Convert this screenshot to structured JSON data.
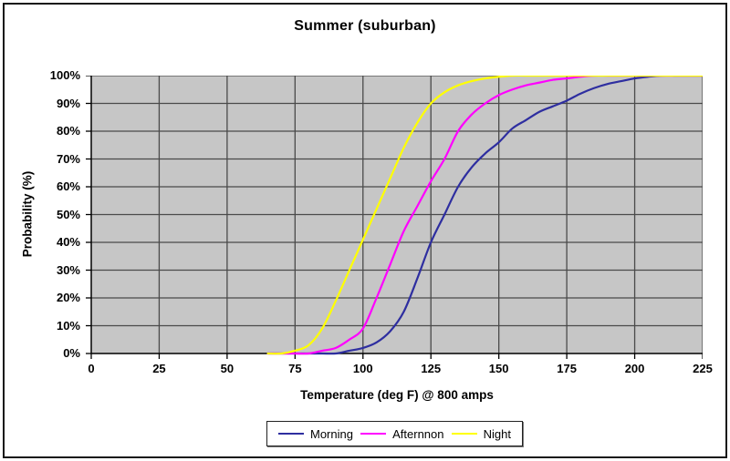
{
  "chart_data": {
    "type": "line",
    "title": "Summer (suburban)",
    "xlabel": "Temperature (deg F) @ 800 amps",
    "ylabel": "Probability (%)",
    "xlim": [
      0,
      225
    ],
    "ylim": [
      0,
      100
    ],
    "grid": true,
    "legend_position": "bottom",
    "plot_bg_color": "#c6c6c6",
    "grid_color": "#4a4a4a",
    "axis_color": "#000000",
    "x_ticks": [
      0,
      25,
      50,
      75,
      100,
      125,
      150,
      175,
      200,
      225
    ],
    "x_tick_labels": [
      "0",
      "25",
      "50",
      "75",
      "100",
      "125",
      "150",
      "175",
      "200",
      "225"
    ],
    "y_ticks": [
      0,
      10,
      20,
      30,
      40,
      50,
      60,
      70,
      80,
      90,
      100
    ],
    "y_tick_labels": [
      "0%",
      "10%",
      "20%",
      "30%",
      "40%",
      "50%",
      "60%",
      "70%",
      "80%",
      "90%",
      "100%"
    ],
    "series": [
      {
        "name": "Morning",
        "color": "#2e2ea0",
        "points": [
          [
            65,
            0
          ],
          [
            70,
            0
          ],
          [
            75,
            0
          ],
          [
            80,
            0
          ],
          [
            85,
            0
          ],
          [
            90,
            0
          ],
          [
            95,
            1
          ],
          [
            100,
            2
          ],
          [
            105,
            4
          ],
          [
            110,
            8
          ],
          [
            115,
            15
          ],
          [
            120,
            27
          ],
          [
            125,
            40
          ],
          [
            130,
            50
          ],
          [
            135,
            60
          ],
          [
            140,
            67
          ],
          [
            145,
            72
          ],
          [
            150,
            76
          ],
          [
            155,
            81
          ],
          [
            160,
            84
          ],
          [
            165,
            87
          ],
          [
            170,
            89
          ],
          [
            175,
            91
          ],
          [
            180,
            93.5
          ],
          [
            185,
            95.5
          ],
          [
            190,
            97
          ],
          [
            195,
            98
          ],
          [
            200,
            99
          ],
          [
            205,
            99.6
          ],
          [
            210,
            100
          ],
          [
            215,
            100
          ],
          [
            220,
            100
          ],
          [
            225,
            100
          ]
        ]
      },
      {
        "name": "Afternnon",
        "color": "#ff00ff",
        "points": [
          [
            65,
            0
          ],
          [
            70,
            0
          ],
          [
            75,
            0
          ],
          [
            80,
            0
          ],
          [
            85,
            1
          ],
          [
            90,
            2
          ],
          [
            95,
            5
          ],
          [
            100,
            9
          ],
          [
            105,
            20
          ],
          [
            110,
            32
          ],
          [
            115,
            44
          ],
          [
            120,
            53
          ],
          [
            125,
            62
          ],
          [
            130,
            70
          ],
          [
            135,
            80
          ],
          [
            140,
            86
          ],
          [
            145,
            90
          ],
          [
            150,
            93
          ],
          [
            155,
            95
          ],
          [
            160,
            96.5
          ],
          [
            165,
            97.5
          ],
          [
            170,
            98.5
          ],
          [
            175,
            99
          ],
          [
            180,
            99.6
          ],
          [
            185,
            100
          ],
          [
            190,
            100
          ],
          [
            195,
            100
          ],
          [
            200,
            100
          ],
          [
            205,
            100
          ],
          [
            210,
            100
          ],
          [
            215,
            100
          ],
          [
            220,
            100
          ],
          [
            225,
            100
          ]
        ]
      },
      {
        "name": "Night",
        "color": "#ffff00",
        "points": [
          [
            65,
            0
          ],
          [
            70,
            0
          ],
          [
            75,
            1
          ],
          [
            80,
            3
          ],
          [
            85,
            9
          ],
          [
            90,
            19
          ],
          [
            95,
            30
          ],
          [
            100,
            41
          ],
          [
            105,
            52
          ],
          [
            110,
            63
          ],
          [
            115,
            74
          ],
          [
            120,
            83
          ],
          [
            125,
            90
          ],
          [
            130,
            94
          ],
          [
            135,
            96.5
          ],
          [
            140,
            98
          ],
          [
            145,
            99
          ],
          [
            150,
            99.6
          ],
          [
            155,
            100
          ],
          [
            160,
            100
          ],
          [
            165,
            100
          ],
          [
            170,
            100
          ],
          [
            175,
            100
          ],
          [
            180,
            100
          ],
          [
            185,
            100
          ],
          [
            190,
            100
          ],
          [
            195,
            100
          ],
          [
            200,
            100
          ],
          [
            205,
            100
          ],
          [
            210,
            100
          ],
          [
            215,
            100
          ],
          [
            220,
            100
          ],
          [
            225,
            100
          ]
        ]
      }
    ],
    "legend_entries": [
      "Morning",
      "Afternnon",
      "Night"
    ]
  }
}
